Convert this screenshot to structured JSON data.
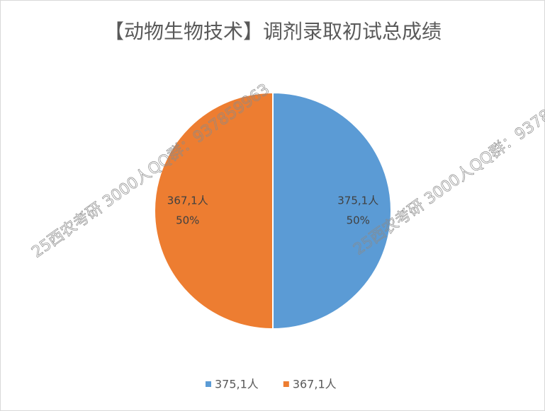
{
  "chart_data": {
    "type": "pie",
    "title": "【动物生物技术】调剂录取初试总成绩",
    "categories": [
      "375,1人",
      "367,1人"
    ],
    "values": [
      50,
      50
    ],
    "value_labels": [
      "50%",
      "50%"
    ],
    "colors": [
      "#5b9bd5",
      "#ed7d31"
    ],
    "legend": "bottom"
  },
  "watermark": "25西农考研 3000人QQ群：937859963"
}
